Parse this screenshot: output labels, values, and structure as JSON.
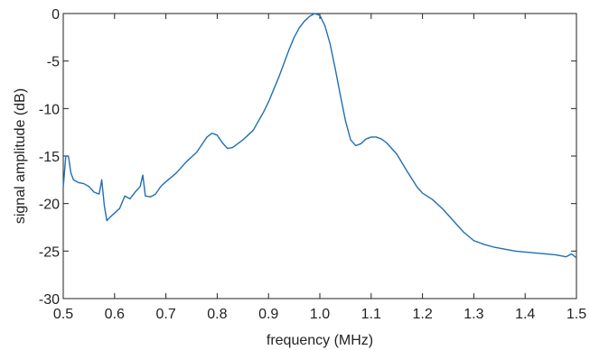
{
  "chart_data": {
    "type": "line",
    "xlabel": "frequency (MHz)",
    "ylabel": "signal amplitude (dB)",
    "xlim": [
      0.5,
      1.5
    ],
    "ylim": [
      -30,
      0
    ],
    "xticks": [
      0.5,
      0.6,
      0.7,
      0.8,
      0.9,
      1.0,
      1.1,
      1.2,
      1.3,
      1.4,
      1.5
    ],
    "xtick_labels": [
      "0.5",
      "0.6",
      "0.7",
      "0.8",
      "0.9",
      "1.0",
      "1.1",
      "1.2",
      "1.3",
      "1.4",
      "1.5"
    ],
    "yticks": [
      0,
      -5,
      -10,
      -15,
      -20,
      -25,
      -30
    ],
    "ytick_labels": [
      "0",
      "-5",
      "-10",
      "-15",
      "-20",
      "-25",
      "-30"
    ],
    "grid": false,
    "line_color": "#1f6fb4",
    "series": [
      {
        "x": [
          0.5,
          0.505,
          0.51,
          0.515,
          0.52,
          0.53,
          0.54,
          0.55,
          0.56,
          0.57,
          0.575,
          0.58,
          0.585,
          0.59,
          0.6,
          0.61,
          0.62,
          0.63,
          0.64,
          0.65,
          0.655,
          0.66,
          0.67,
          0.68,
          0.69,
          0.7,
          0.72,
          0.74,
          0.76,
          0.77,
          0.78,
          0.79,
          0.8,
          0.81,
          0.82,
          0.83,
          0.85,
          0.87,
          0.89,
          0.9,
          0.92,
          0.94,
          0.95,
          0.96,
          0.97,
          0.98,
          0.99,
          1.0,
          1.01,
          1.02,
          1.03,
          1.04,
          1.05,
          1.06,
          1.07,
          1.08,
          1.09,
          1.1,
          1.11,
          1.12,
          1.13,
          1.15,
          1.17,
          1.19,
          1.2,
          1.22,
          1.24,
          1.26,
          1.28,
          1.3,
          1.32,
          1.34,
          1.36,
          1.38,
          1.4,
          1.42,
          1.44,
          1.46,
          1.48,
          1.49,
          1.5
        ],
        "y": [
          -18.3,
          -15.0,
          -15.0,
          -16.8,
          -17.5,
          -17.8,
          -17.9,
          -18.2,
          -18.8,
          -19.0,
          -17.5,
          -20.2,
          -21.8,
          -21.5,
          -21.0,
          -20.5,
          -19.2,
          -19.5,
          -18.8,
          -18.2,
          -17.0,
          -19.2,
          -19.3,
          -19.0,
          -18.2,
          -17.7,
          -16.8,
          -15.6,
          -14.6,
          -13.8,
          -13.0,
          -12.6,
          -12.8,
          -13.6,
          -14.2,
          -14.1,
          -13.3,
          -12.3,
          -10.4,
          -9.3,
          -6.7,
          -3.8,
          -2.5,
          -1.5,
          -0.8,
          -0.3,
          0.0,
          -0.2,
          -1.3,
          -3.2,
          -5.8,
          -8.6,
          -11.3,
          -13.3,
          -13.9,
          -13.7,
          -13.2,
          -13.0,
          -13.0,
          -13.2,
          -13.6,
          -14.8,
          -16.6,
          -18.3,
          -18.9,
          -19.6,
          -20.6,
          -21.8,
          -23.0,
          -23.9,
          -24.3,
          -24.6,
          -24.8,
          -25.0,
          -25.1,
          -25.2,
          -25.3,
          -25.4,
          -25.6,
          -25.3,
          -25.7
        ]
      }
    ]
  }
}
